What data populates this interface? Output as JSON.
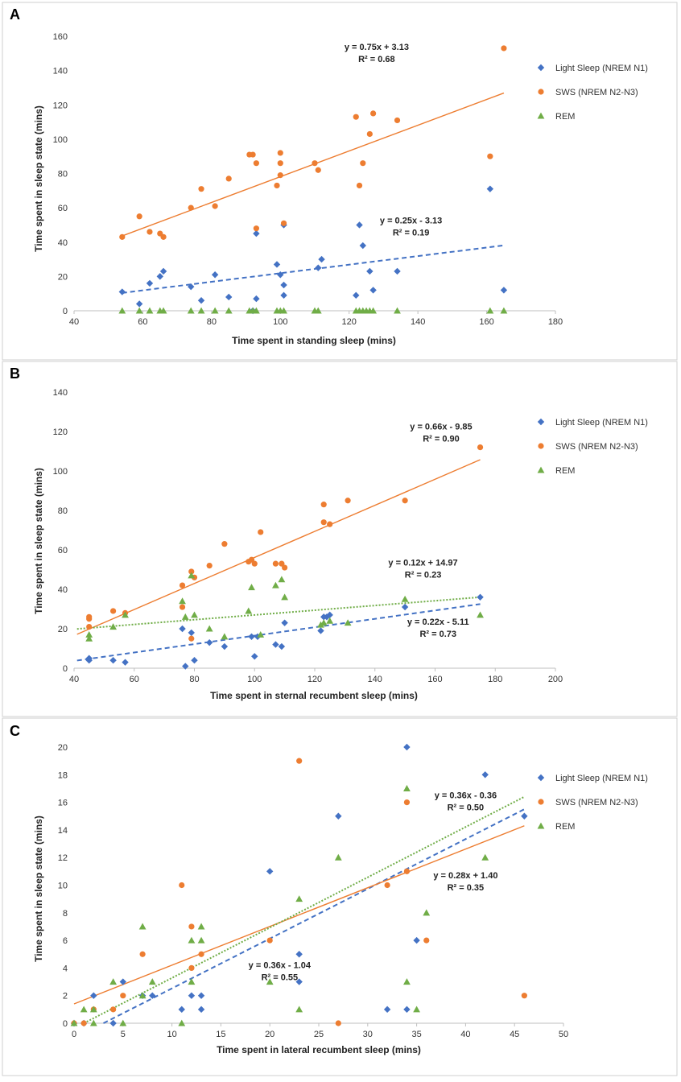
{
  "chart_data": [
    {
      "type": "scatter",
      "panel": "A",
      "xlabel": "Time spent in standing sleep (mins)",
      "ylabel": "Time spent in sleep state (mins)",
      "xlim": [
        40,
        180
      ],
      "xticks": [
        40,
        60,
        80,
        100,
        120,
        140,
        160,
        180
      ],
      "ylim": [
        0,
        160
      ],
      "yticks": [
        0,
        20,
        40,
        60,
        80,
        100,
        120,
        140,
        160
      ],
      "legend_position": "right",
      "series": [
        {
          "name": "Light Sleep (NREM N1)",
          "color": "#4472C4",
          "marker": "diamond",
          "points": [
            [
              54,
              11
            ],
            [
              59,
              4
            ],
            [
              62,
              16
            ],
            [
              65,
              20
            ],
            [
              66,
              23
            ],
            [
              74,
              14
            ],
            [
              77,
              6
            ],
            [
              81,
              21
            ],
            [
              85,
              8
            ],
            [
              92,
              0
            ],
            [
              93,
              45
            ],
            [
              93,
              7
            ],
            [
              99,
              27
            ],
            [
              100,
              21
            ],
            [
              101,
              9
            ],
            [
              101,
              15
            ],
            [
              101,
              50
            ],
            [
              111,
              25
            ],
            [
              112,
              30
            ],
            [
              122,
              9
            ],
            [
              123,
              50
            ],
            [
              124,
              38
            ],
            [
              126,
              23
            ],
            [
              127,
              12
            ],
            [
              134,
              23
            ],
            [
              161,
              71
            ],
            [
              165,
              12
            ]
          ],
          "trend": {
            "x": [
              54,
              165
            ],
            "y": [
              10.4,
              38.1
            ],
            "style": "dashed"
          }
        },
        {
          "name": "SWS (NREM N2-N3)",
          "color": "#ED7D31",
          "marker": "circle",
          "points": [
            [
              54,
              43
            ],
            [
              59,
              55
            ],
            [
              62,
              46
            ],
            [
              65,
              45
            ],
            [
              66,
              43
            ],
            [
              74,
              60
            ],
            [
              77,
              71
            ],
            [
              81,
              61
            ],
            [
              85,
              77
            ],
            [
              91,
              91
            ],
            [
              92,
              91
            ],
            [
              93,
              86
            ],
            [
              93,
              48
            ],
            [
              99,
              73
            ],
            [
              100,
              79
            ],
            [
              100,
              86
            ],
            [
              100,
              92
            ],
            [
              101,
              51
            ],
            [
              110,
              86
            ],
            [
              111,
              82
            ],
            [
              122,
              113
            ],
            [
              123,
              73
            ],
            [
              124,
              86
            ],
            [
              126,
              103
            ],
            [
              127,
              115
            ],
            [
              134,
              111
            ],
            [
              161,
              90
            ],
            [
              165,
              153
            ]
          ],
          "trend": {
            "x": [
              54,
              165
            ],
            "y": [
              43.6,
              126.9
            ],
            "style": "solid"
          }
        },
        {
          "name": "REM",
          "color": "#70AD47",
          "marker": "triangle",
          "points": [
            [
              54,
              0
            ],
            [
              59,
              0
            ],
            [
              62,
              0
            ],
            [
              65,
              0
            ],
            [
              66,
              0
            ],
            [
              74,
              0
            ],
            [
              77,
              0
            ],
            [
              81,
              0
            ],
            [
              85,
              0
            ],
            [
              91,
              0
            ],
            [
              92,
              0
            ],
            [
              93,
              0
            ],
            [
              99,
              0
            ],
            [
              100,
              0
            ],
            [
              101,
              0
            ],
            [
              110,
              0
            ],
            [
              111,
              0
            ],
            [
              122,
              0
            ],
            [
              123,
              0
            ],
            [
              124,
              0
            ],
            [
              125,
              0
            ],
            [
              126,
              0
            ],
            [
              127,
              0
            ],
            [
              134,
              0
            ],
            [
              161,
              0
            ],
            [
              165,
              0
            ]
          ]
        }
      ],
      "equations": [
        {
          "line1": "y = 0.75x + 3.13",
          "line2": "R² = 0.68",
          "at": [
            128,
            152
          ]
        },
        {
          "line1": "y = 0.25x - 3.13",
          "line2": "R² = 0.19",
          "at": [
            138,
            51
          ]
        }
      ]
    },
    {
      "type": "scatter",
      "panel": "B",
      "xlabel": "Time spent in sternal recumbent sleep (mins)",
      "ylabel": "Time spent in sleep state (mins)",
      "xlim": [
        40,
        200
      ],
      "xticks": [
        40,
        60,
        80,
        100,
        120,
        140,
        160,
        180,
        200
      ],
      "ylim": [
        0,
        140
      ],
      "yticks": [
        0,
        20,
        40,
        60,
        80,
        100,
        120,
        140
      ],
      "legend_position": "right",
      "series": [
        {
          "name": "Light Sleep (NREM N1)",
          "color": "#4472C4",
          "marker": "diamond",
          "points": [
            [
              45,
              5
            ],
            [
              45,
              4
            ],
            [
              53,
              4
            ],
            [
              57,
              3
            ],
            [
              76,
              20
            ],
            [
              77,
              1
            ],
            [
              79,
              18
            ],
            [
              80,
              4
            ],
            [
              85,
              13
            ],
            [
              90,
              11
            ],
            [
              99,
              16
            ],
            [
              100,
              6
            ],
            [
              101,
              16
            ],
            [
              107,
              12
            ],
            [
              109,
              11
            ],
            [
              110,
              23
            ],
            [
              122,
              19
            ],
            [
              123,
              26
            ],
            [
              124,
              26
            ],
            [
              125,
              27
            ],
            [
              150,
              31
            ],
            [
              175,
              36
            ]
          ],
          "trend": {
            "x": [
              41,
              175
            ],
            "y": [
              3.9,
              32.5
            ],
            "style": "dashed"
          }
        },
        {
          "name": "SWS (NREM N2-N3)",
          "color": "#ED7D31",
          "marker": "circle",
          "points": [
            [
              45,
              25
            ],
            [
              45,
              26
            ],
            [
              45,
              21
            ],
            [
              53,
              29
            ],
            [
              57,
              28
            ],
            [
              76,
              42
            ],
            [
              76,
              31
            ],
            [
              79,
              15
            ],
            [
              79,
              49
            ],
            [
              80,
              46
            ],
            [
              85,
              52
            ],
            [
              90,
              63
            ],
            [
              98,
              54
            ],
            [
              99,
              55
            ],
            [
              100,
              53
            ],
            [
              102,
              69
            ],
            [
              107,
              53
            ],
            [
              109,
              53
            ],
            [
              110,
              51
            ],
            [
              123,
              83
            ],
            [
              123,
              74
            ],
            [
              125,
              73
            ],
            [
              131,
              85
            ],
            [
              150,
              85
            ],
            [
              175,
              112
            ]
          ],
          "trend": {
            "x": [
              41,
              175
            ],
            "y": [
              17.2,
              105.7
            ],
            "style": "solid"
          }
        },
        {
          "name": "REM",
          "color": "#70AD47",
          "marker": "triangle",
          "points": [
            [
              45,
              17
            ],
            [
              45,
              15
            ],
            [
              53,
              21
            ],
            [
              57,
              27
            ],
            [
              76,
              34
            ],
            [
              77,
              26
            ],
            [
              79,
              47
            ],
            [
              80,
              27
            ],
            [
              85,
              20
            ],
            [
              90,
              16
            ],
            [
              98,
              29
            ],
            [
              99,
              41
            ],
            [
              102,
              17
            ],
            [
              107,
              42
            ],
            [
              109,
              45
            ],
            [
              110,
              36
            ],
            [
              122,
              22
            ],
            [
              123,
              23
            ],
            [
              125,
              24
            ],
            [
              131,
              23
            ],
            [
              150,
              35
            ],
            [
              175,
              27
            ]
          ]
        }
      ],
      "equations": [
        {
          "line1": "y = 0.66x - 9.85",
          "line2": "R² = 0.90",
          "at": [
            162,
            121
          ]
        },
        {
          "line1": "y = 0.12x + 14.97",
          "line2": "R² = 0.23",
          "at": [
            156,
            52
          ]
        },
        {
          "line1": "y = 0.22x - 5.11",
          "line2": "R² = 0.73",
          "at": [
            161,
            22
          ]
        }
      ],
      "extra_trends": [
        {
          "color": "#70AD47",
          "x": [
            41,
            175
          ],
          "y": [
            19.9,
            36.0
          ],
          "style": "dotted"
        }
      ]
    },
    {
      "type": "scatter",
      "panel": "C",
      "xlabel": "Time spent in lateral recumbent sleep (mins)",
      "ylabel": "Time spent in sleep state (mins)",
      "xlim": [
        0,
        50
      ],
      "xticks": [
        0,
        5,
        10,
        15,
        20,
        25,
        30,
        35,
        40,
        45,
        50
      ],
      "ylim": [
        0,
        20
      ],
      "yticks": [
        0,
        2,
        4,
        6,
        8,
        10,
        12,
        14,
        16,
        18,
        20
      ],
      "legend_position": "right",
      "series": [
        {
          "name": "Light Sleep (NREM N1)",
          "color": "#4472C4",
          "marker": "diamond",
          "points": [
            [
              0,
              0
            ],
            [
              1,
              0
            ],
            [
              2,
              2
            ],
            [
              4,
              0
            ],
            [
              5,
              3
            ],
            [
              7,
              2
            ],
            [
              8,
              2
            ],
            [
              11,
              1
            ],
            [
              12,
              2
            ],
            [
              13,
              1
            ],
            [
              13,
              2
            ],
            [
              20,
              11
            ],
            [
              23,
              5
            ],
            [
              23,
              3
            ],
            [
              27,
              15
            ],
            [
              32,
              1
            ],
            [
              34,
              20
            ],
            [
              34,
              1
            ],
            [
              35,
              6
            ],
            [
              42,
              18
            ],
            [
              46,
              15
            ]
          ],
          "trend": {
            "x": [
              3,
              46
            ],
            "y": [
              0,
              15.5
            ],
            "style": "dashed"
          }
        },
        {
          "name": "SWS (NREM N2-N3)",
          "color": "#ED7D31",
          "marker": "circle",
          "points": [
            [
              0,
              0
            ],
            [
              1,
              0
            ],
            [
              2,
              1
            ],
            [
              4,
              1
            ],
            [
              5,
              2
            ],
            [
              7,
              5
            ],
            [
              11,
              10
            ],
            [
              12,
              4
            ],
            [
              12,
              7
            ],
            [
              13,
              5
            ],
            [
              20,
              6
            ],
            [
              23,
              19
            ],
            [
              27,
              0
            ],
            [
              32,
              10
            ],
            [
              34,
              16
            ],
            [
              34,
              11
            ],
            [
              36,
              6
            ],
            [
              46,
              2
            ]
          ],
          "trend": {
            "x": [
              0,
              46
            ],
            "y": [
              1.4,
              14.3
            ],
            "style": "solid"
          }
        },
        {
          "name": "REM",
          "color": "#70AD47",
          "marker": "triangle",
          "points": [
            [
              0,
              0
            ],
            [
              1,
              1
            ],
            [
              2,
              1
            ],
            [
              2,
              0
            ],
            [
              4,
              3
            ],
            [
              5,
              0
            ],
            [
              7,
              7
            ],
            [
              7,
              2
            ],
            [
              8,
              3
            ],
            [
              11,
              0
            ],
            [
              12,
              6
            ],
            [
              12,
              3
            ],
            [
              13,
              7
            ],
            [
              13,
              6
            ],
            [
              20,
              3
            ],
            [
              23,
              9
            ],
            [
              23,
              1
            ],
            [
              27,
              12
            ],
            [
              34,
              17
            ],
            [
              34,
              3
            ],
            [
              35,
              1
            ],
            [
              36,
              8
            ],
            [
              42,
              12
            ]
          ]
        }
      ],
      "equations": [
        {
          "line1": "y = 0.36x - 0.36",
          "line2": "R² = 0.50",
          "at": [
            40,
            16.3
          ]
        },
        {
          "line1": "y = 0.28x + 1.40",
          "line2": "R² = 0.35",
          "at": [
            40,
            10.5
          ]
        },
        {
          "line1": "y = 0.36x - 1.04",
          "line2": "R² = 0.55",
          "at": [
            21,
            4.0
          ]
        }
      ],
      "extra_trends": [
        {
          "color": "#70AD47",
          "x": [
            1,
            46
          ],
          "y": [
            0,
            16.4
          ],
          "style": "dotted"
        }
      ]
    }
  ]
}
